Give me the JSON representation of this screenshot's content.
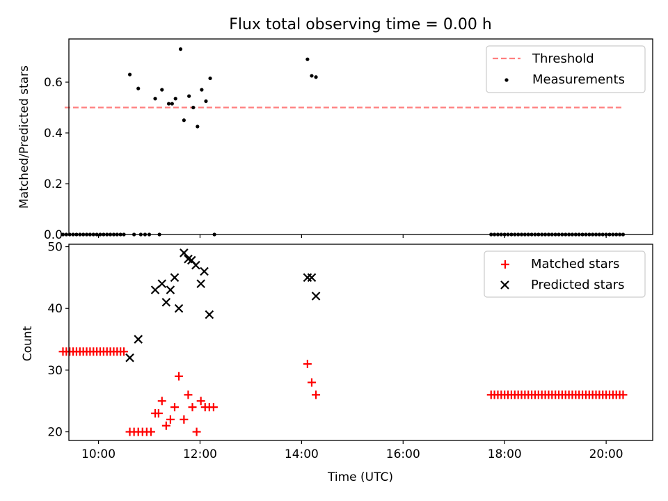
{
  "chart_data": [
    {
      "type": "scatter",
      "title": "Flux total observing time = 0.00 h",
      "xlabel": "",
      "ylabel": "Matched/Predicted stars",
      "xlim": [
        "09:25",
        "20:55"
      ],
      "ylim": [
        0,
        0.77
      ],
      "yticks": [
        "0.0",
        "0.2",
        "0.4",
        "0.6"
      ],
      "grid": false,
      "legend_position": "top-right",
      "threshold": {
        "name": "Threshold",
        "color": "#ff7f7f",
        "value": 0.5,
        "x_range": [
          "09:20",
          "20:20"
        ]
      },
      "series": [
        {
          "name": "Measurements",
          "color": "#000000",
          "points": [
            [
              "10:37",
              0.63
            ],
            [
              "10:47",
              0.575
            ],
            [
              "11:07",
              0.535
            ],
            [
              "11:15",
              0.57
            ],
            [
              "11:23",
              0.515
            ],
            [
              "11:27",
              0.515
            ],
            [
              "11:31",
              0.535
            ],
            [
              "11:37",
              0.73
            ],
            [
              "11:41",
              0.45
            ],
            [
              "11:47",
              0.545
            ],
            [
              "11:52",
              0.5
            ],
            [
              "11:57",
              0.425
            ],
            [
              "12:02",
              0.57
            ],
            [
              "12:07",
              0.525
            ],
            [
              "12:12",
              0.615
            ],
            [
              "14:07",
              0.69
            ],
            [
              "14:12",
              0.625
            ],
            [
              "14:17",
              0.62
            ],
            [
              "09:18",
              0
            ],
            [
              "09:22",
              0
            ],
            [
              "09:26",
              0
            ],
            [
              "09:30",
              0
            ],
            [
              "09:34",
              0
            ],
            [
              "09:38",
              0
            ],
            [
              "09:42",
              0
            ],
            [
              "09:46",
              0
            ],
            [
              "09:50",
              0
            ],
            [
              "09:54",
              0
            ],
            [
              "09:58",
              0
            ],
            [
              "10:02",
              0
            ],
            [
              "10:06",
              0
            ],
            [
              "10:10",
              0
            ],
            [
              "10:14",
              0
            ],
            [
              "10:18",
              0
            ],
            [
              "10:22",
              0
            ],
            [
              "10:26",
              0
            ],
            [
              "10:30",
              0
            ],
            [
              "10:42",
              0
            ],
            [
              "10:50",
              0
            ],
            [
              "10:55",
              0
            ],
            [
              "11:00",
              0
            ],
            [
              "11:12",
              0
            ],
            [
              "12:17",
              0
            ],
            [
              "17:44",
              0
            ],
            [
              "17:48",
              0
            ],
            [
              "17:52",
              0
            ],
            [
              "17:56",
              0
            ],
            [
              "18:00",
              0
            ],
            [
              "18:04",
              0
            ],
            [
              "18:08",
              0
            ],
            [
              "18:12",
              0
            ],
            [
              "18:16",
              0
            ],
            [
              "18:20",
              0
            ],
            [
              "18:24",
              0
            ],
            [
              "18:28",
              0
            ],
            [
              "18:32",
              0
            ],
            [
              "18:36",
              0
            ],
            [
              "18:40",
              0
            ],
            [
              "18:44",
              0
            ],
            [
              "18:48",
              0
            ],
            [
              "18:52",
              0
            ],
            [
              "18:56",
              0
            ],
            [
              "19:00",
              0
            ],
            [
              "19:04",
              0
            ],
            [
              "19:08",
              0
            ],
            [
              "19:12",
              0
            ],
            [
              "19:16",
              0
            ],
            [
              "19:20",
              0
            ],
            [
              "19:24",
              0
            ],
            [
              "19:28",
              0
            ],
            [
              "19:32",
              0
            ],
            [
              "19:36",
              0
            ],
            [
              "19:40",
              0
            ],
            [
              "19:44",
              0
            ],
            [
              "19:48",
              0
            ],
            [
              "19:52",
              0
            ],
            [
              "19:56",
              0
            ],
            [
              "20:00",
              0
            ],
            [
              "20:04",
              0
            ],
            [
              "20:08",
              0
            ],
            [
              "20:12",
              0
            ],
            [
              "20:16",
              0
            ],
            [
              "20:20",
              0
            ]
          ]
        }
      ]
    },
    {
      "type": "scatter",
      "title": "",
      "xlabel": "Time (UTC)",
      "ylabel": "Count",
      "xlim": [
        "09:25",
        "20:55"
      ],
      "ylim": [
        18.6,
        50.4
      ],
      "yticks": [
        "20",
        "30",
        "40",
        "50"
      ],
      "xticks": [
        "10:00",
        "12:00",
        "14:00",
        "16:00",
        "18:00",
        "20:00"
      ],
      "grid": false,
      "legend_position": "top-right",
      "series": [
        {
          "name": "Matched stars",
          "marker": "plus",
          "color": "#ff0000",
          "points": [
            [
              "09:18",
              33
            ],
            [
              "09:22",
              33
            ],
            [
              "09:26",
              33
            ],
            [
              "09:30",
              33
            ],
            [
              "09:34",
              33
            ],
            [
              "09:38",
              33
            ],
            [
              "09:42",
              33
            ],
            [
              "09:46",
              33
            ],
            [
              "09:50",
              33
            ],
            [
              "09:54",
              33
            ],
            [
              "09:58",
              33
            ],
            [
              "10:02",
              33
            ],
            [
              "10:06",
              33
            ],
            [
              "10:10",
              33
            ],
            [
              "10:14",
              33
            ],
            [
              "10:18",
              33
            ],
            [
              "10:22",
              33
            ],
            [
              "10:26",
              33
            ],
            [
              "10:30",
              33
            ],
            [
              "10:37",
              20
            ],
            [
              "10:42",
              20
            ],
            [
              "10:47",
              20
            ],
            [
              "10:52",
              20
            ],
            [
              "10:57",
              20
            ],
            [
              "11:02",
              20
            ],
            [
              "11:07",
              23
            ],
            [
              "11:11",
              23
            ],
            [
              "11:15",
              25
            ],
            [
              "11:20",
              21
            ],
            [
              "11:25",
              22
            ],
            [
              "11:30",
              24
            ],
            [
              "11:35",
              29
            ],
            [
              "11:41",
              22
            ],
            [
              "11:46",
              26
            ],
            [
              "11:51",
              24
            ],
            [
              "11:56",
              20
            ],
            [
              "12:01",
              25
            ],
            [
              "12:06",
              24
            ],
            [
              "12:11",
              24
            ],
            [
              "12:16",
              24
            ],
            [
              "14:07",
              31
            ],
            [
              "14:12",
              28
            ],
            [
              "14:17",
              26
            ],
            [
              "17:44",
              26
            ],
            [
              "17:48",
              26
            ],
            [
              "17:52",
              26
            ],
            [
              "17:56",
              26
            ],
            [
              "18:00",
              26
            ],
            [
              "18:04",
              26
            ],
            [
              "18:08",
              26
            ],
            [
              "18:12",
              26
            ],
            [
              "18:16",
              26
            ],
            [
              "18:20",
              26
            ],
            [
              "18:24",
              26
            ],
            [
              "18:28",
              26
            ],
            [
              "18:32",
              26
            ],
            [
              "18:36",
              26
            ],
            [
              "18:40",
              26
            ],
            [
              "18:44",
              26
            ],
            [
              "18:48",
              26
            ],
            [
              "18:52",
              26
            ],
            [
              "18:56",
              26
            ],
            [
              "19:00",
              26
            ],
            [
              "19:04",
              26
            ],
            [
              "19:08",
              26
            ],
            [
              "19:12",
              26
            ],
            [
              "19:16",
              26
            ],
            [
              "19:20",
              26
            ],
            [
              "19:24",
              26
            ],
            [
              "19:28",
              26
            ],
            [
              "19:32",
              26
            ],
            [
              "19:36",
              26
            ],
            [
              "19:40",
              26
            ],
            [
              "19:44",
              26
            ],
            [
              "19:48",
              26
            ],
            [
              "19:52",
              26
            ],
            [
              "19:56",
              26
            ],
            [
              "20:00",
              26
            ],
            [
              "20:04",
              26
            ],
            [
              "20:08",
              26
            ],
            [
              "20:12",
              26
            ],
            [
              "20:16",
              26
            ],
            [
              "20:20",
              26
            ]
          ]
        },
        {
          "name": "Predicted stars",
          "marker": "x",
          "color": "#000000",
          "points": [
            [
              "10:37",
              32
            ],
            [
              "10:47",
              35
            ],
            [
              "11:07",
              43
            ],
            [
              "11:15",
              44
            ],
            [
              "11:20",
              41
            ],
            [
              "11:25",
              43
            ],
            [
              "11:30",
              45
            ],
            [
              "11:35",
              40
            ],
            [
              "11:41",
              49
            ],
            [
              "11:46",
              48
            ],
            [
              "11:50",
              47.8
            ],
            [
              "11:55",
              47
            ],
            [
              "12:01",
              44
            ],
            [
              "12:05",
              46
            ],
            [
              "12:11",
              39
            ],
            [
              "14:07",
              45
            ],
            [
              "14:12",
              45
            ],
            [
              "14:17",
              42
            ]
          ]
        }
      ]
    }
  ]
}
